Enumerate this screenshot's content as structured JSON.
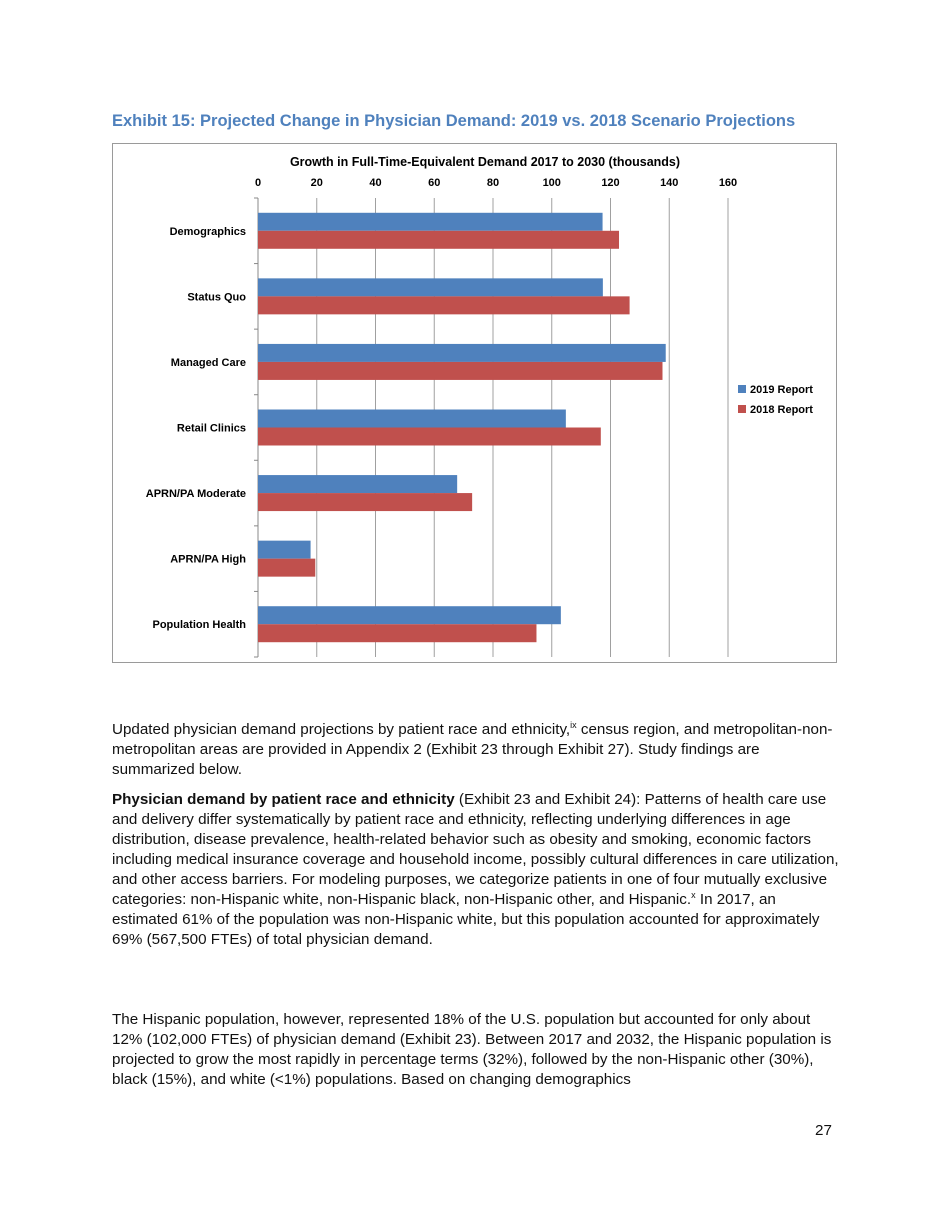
{
  "exhibit_title": "Exhibit 15: Projected Change in Physician Demand: 2019 vs. 2018 Scenario Projections",
  "chart_data": {
    "type": "bar",
    "orientation": "horizontal",
    "title": "Growth in Full-Time-Equivalent Demand 2017 to 2030 (thousands)",
    "categories": [
      "Demographics",
      "Status Quo",
      "Managed Care",
      "Retail Clinics",
      "APRN/PA Moderate",
      "APRN/PA High",
      "Population Health"
    ],
    "series": [
      {
        "name": "2019 Report",
        "color": "#4f81bd",
        "values": [
          117.3,
          117.4,
          138.8,
          104.8,
          67.8,
          17.9,
          103.1
        ]
      },
      {
        "name": "2018 Report",
        "color": "#c0504d",
        "values": [
          122.9,
          126.5,
          137.7,
          116.7,
          72.9,
          19.5,
          94.8
        ]
      }
    ],
    "xlim": [
      0,
      160
    ],
    "xticks": [
      "0",
      "20",
      "40",
      "60",
      "80",
      "100",
      "120",
      "140",
      "160"
    ],
    "grid": true,
    "legend": "right"
  },
  "paragraphs": {
    "p1": {
      "a": "Updated physician demand projections by patient race and ethnicity,",
      "sup": "ix",
      "b": " census region, and metropolitan-non-metropolitan areas are provided in Appendix 2 (Exhibit 23 through Exhibit 27). Study findings are summarized below."
    },
    "p2": {
      "bold": "Physician demand by patient race and ethnicity",
      "a": " (Exhibit 23 and Exhibit 24): Patterns of health care use and delivery differ systematically by patient race and ethnicity, reflecting underlying differences in age distribution, disease prevalence, health-related behavior such as obesity and smoking, economic factors including medical insurance coverage and household income, possibly cultural differences in care utilization, and other access barriers. For modeling purposes, we categorize patients in one of four mutually exclusive categories: non-Hispanic white, non-Hispanic black, non-Hispanic other, and Hispanic.",
      "sup": "x",
      "b": " In 2017, an estimated 61% of the population was non-Hispanic white, but this population accounted for approximately 69% (567,500 FTEs) of total physician demand."
    },
    "p3": "The Hispanic population, however, represented 18% of the U.S. population but accounted for only about 12% (102,000 FTEs) of physician demand (Exhibit 23). Between 2017 and 2032, the Hispanic population is projected to grow the most rapidly in percentage terms (32%), followed by the non-Hispanic other (30%), black (15%), and white (<1%) populations. Based on changing demographics"
  },
  "page_number": "27"
}
